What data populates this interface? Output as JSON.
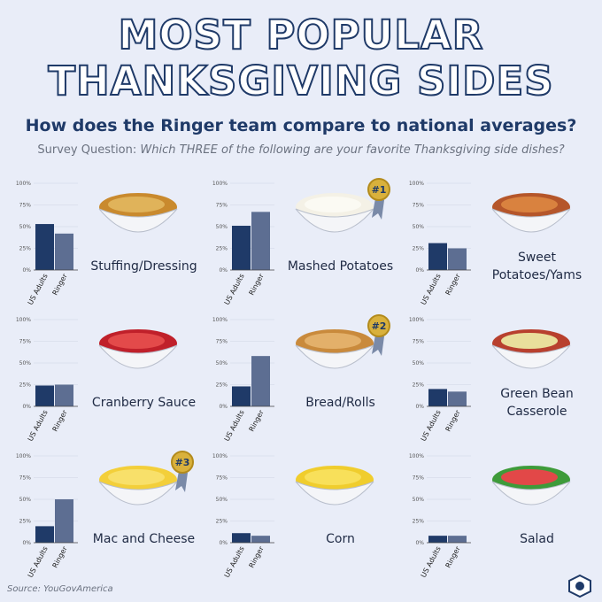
{
  "title": "MOST POPULAR THANKSGIVING SIDES",
  "subtitle": "How does the Ringer team compare to national averages?",
  "question_label": "Survey Question:",
  "question": "Which THREE of the following are your favorite Thanksgiving side dishes?",
  "source": "Source: YouGovAmerica",
  "chart_data": [
    {
      "type": "bar",
      "title": "Stuffing/Dressing",
      "categories": [
        "US Adults",
        "Ringer"
      ],
      "values": [
        53,
        42
      ],
      "colors": [
        "#1f3a68",
        "#5d6e92"
      ],
      "ylim": [
        0,
        100
      ],
      "yticks": [
        {
          "value": 0,
          "label": "0%"
        },
        {
          "value": 25,
          "label": "25%"
        },
        {
          "value": 50,
          "label": "50%"
        },
        {
          "value": 75,
          "label": "75%"
        },
        {
          "value": 100,
          "label": "100%"
        }
      ]
    },
    {
      "type": "bar",
      "title": "Mashed Potatoes",
      "badge": "#1",
      "categories": [
        "US Adults",
        "Ringer"
      ],
      "values": [
        51,
        67
      ],
      "colors": [
        "#1f3a68",
        "#5d6e92"
      ],
      "ylim": [
        0,
        100
      ],
      "yticks": [
        {
          "value": 0,
          "label": "0%"
        },
        {
          "value": 25,
          "label": "25%"
        },
        {
          "value": 50,
          "label": "50%"
        },
        {
          "value": 75,
          "label": "75%"
        },
        {
          "value": 100,
          "label": "100%"
        }
      ]
    },
    {
      "type": "bar",
      "title": "Sweet Potatoes/Yams",
      "categories": [
        "US Adults",
        "Ringer"
      ],
      "values": [
        31,
        25
      ],
      "colors": [
        "#1f3a68",
        "#5d6e92"
      ],
      "ylim": [
        0,
        100
      ],
      "yticks": [
        {
          "value": 0,
          "label": "0%"
        },
        {
          "value": 25,
          "label": "25%"
        },
        {
          "value": 50,
          "label": "50%"
        },
        {
          "value": 75,
          "label": "75%"
        },
        {
          "value": 100,
          "label": "100%"
        }
      ]
    },
    {
      "type": "bar",
      "title": "Cranberry Sauce",
      "categories": [
        "US Adults",
        "Ringer"
      ],
      "values": [
        24,
        25
      ],
      "colors": [
        "#1f3a68",
        "#5d6e92"
      ],
      "ylim": [
        0,
        100
      ],
      "yticks": [
        {
          "value": 0,
          "label": "0%"
        },
        {
          "value": 25,
          "label": "25%"
        },
        {
          "value": 50,
          "label": "50%"
        },
        {
          "value": 75,
          "label": "75%"
        },
        {
          "value": 100,
          "label": "100%"
        }
      ]
    },
    {
      "type": "bar",
      "title": "Bread/Rolls",
      "badge": "#2",
      "categories": [
        "US Adults",
        "Ringer"
      ],
      "values": [
        23,
        58
      ],
      "colors": [
        "#1f3a68",
        "#5d6e92"
      ],
      "ylim": [
        0,
        100
      ],
      "yticks": [
        {
          "value": 0,
          "label": "0%"
        },
        {
          "value": 25,
          "label": "25%"
        },
        {
          "value": 50,
          "label": "50%"
        },
        {
          "value": 75,
          "label": "75%"
        },
        {
          "value": 100,
          "label": "100%"
        }
      ]
    },
    {
      "type": "bar",
      "title": "Green Bean Casserole",
      "categories": [
        "US Adults",
        "Ringer"
      ],
      "values": [
        20,
        17
      ],
      "colors": [
        "#1f3a68",
        "#5d6e92"
      ],
      "ylim": [
        0,
        100
      ],
      "yticks": [
        {
          "value": 0,
          "label": "0%"
        },
        {
          "value": 25,
          "label": "25%"
        },
        {
          "value": 50,
          "label": "50%"
        },
        {
          "value": 75,
          "label": "75%"
        },
        {
          "value": 100,
          "label": "100%"
        }
      ]
    },
    {
      "type": "bar",
      "title": "Mac and Cheese",
      "badge": "#3",
      "categories": [
        "US Adults",
        "Ringer"
      ],
      "values": [
        19,
        50
      ],
      "colors": [
        "#1f3a68",
        "#5d6e92"
      ],
      "ylim": [
        0,
        100
      ],
      "yticks": [
        {
          "value": 0,
          "label": "0%"
        },
        {
          "value": 25,
          "label": "25%"
        },
        {
          "value": 50,
          "label": "50%"
        },
        {
          "value": 75,
          "label": "75%"
        },
        {
          "value": 100,
          "label": "100%"
        }
      ]
    },
    {
      "type": "bar",
      "title": "Corn",
      "categories": [
        "US Adults",
        "Ringer"
      ],
      "values": [
        11,
        8
      ],
      "colors": [
        "#1f3a68",
        "#5d6e92"
      ],
      "ylim": [
        0,
        100
      ],
      "yticks": [
        {
          "value": 0,
          "label": "0%"
        },
        {
          "value": 25,
          "label": "25%"
        },
        {
          "value": 50,
          "label": "50%"
        },
        {
          "value": 75,
          "label": "75%"
        },
        {
          "value": 100,
          "label": "100%"
        }
      ]
    },
    {
      "type": "bar",
      "title": "Salad",
      "categories": [
        "US Adults",
        "Ringer"
      ],
      "values": [
        8,
        8
      ],
      "colors": [
        "#1f3a68",
        "#5d6e92"
      ],
      "ylim": [
        0,
        100
      ],
      "yticks": [
        {
          "value": 0,
          "label": "0%"
        },
        {
          "value": 25,
          "label": "25%"
        },
        {
          "value": 50,
          "label": "50%"
        },
        {
          "value": 75,
          "label": "75%"
        },
        {
          "value": 100,
          "label": "100%"
        }
      ]
    }
  ]
}
